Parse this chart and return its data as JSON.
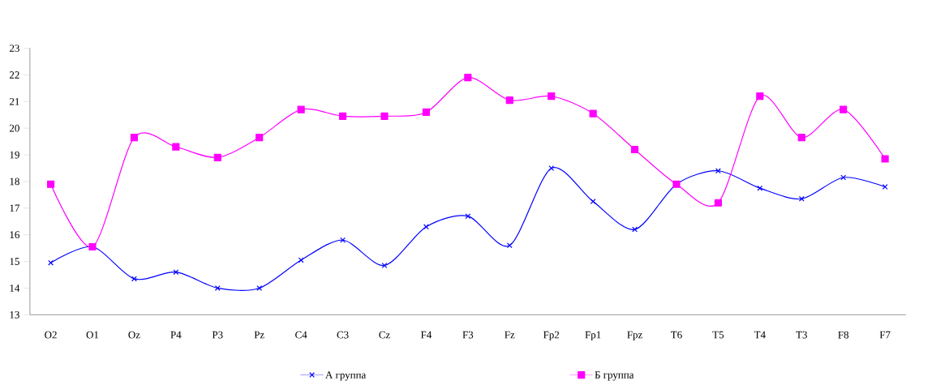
{
  "chart_data": {
    "type": "line",
    "categories": [
      "O2",
      "O1",
      "Oz",
      "P4",
      "P3",
      "Pz",
      "C4",
      "C3",
      "Cz",
      "F4",
      "F3",
      "Fz",
      "Fp2",
      "Fp1",
      "Fpz",
      "T6",
      "T5",
      "T4",
      "T3",
      "F8",
      "F7"
    ],
    "series": [
      {
        "name": "А группа",
        "color": "#0000ff",
        "marker": "cross",
        "values": [
          14.95,
          15.55,
          14.35,
          14.6,
          14.0,
          14.0,
          15.05,
          15.8,
          14.85,
          16.3,
          16.7,
          15.6,
          18.5,
          17.25,
          16.2,
          17.9,
          18.4,
          17.75,
          17.35,
          18.15,
          17.8
        ]
      },
      {
        "name": "Б группа",
        "color": "#ff00ff",
        "marker": "square",
        "values": [
          17.9,
          15.55,
          19.65,
          19.3,
          18.9,
          19.65,
          20.7,
          20.45,
          20.45,
          20.6,
          21.9,
          21.05,
          21.2,
          20.55,
          19.2,
          17.9,
          17.2,
          21.2,
          19.65,
          20.7,
          18.85
        ]
      }
    ],
    "ylim": [
      13,
      23
    ],
    "yticks": [
      13,
      14,
      15,
      16,
      17,
      18,
      19,
      20,
      21,
      22,
      23
    ],
    "grid": false,
    "legend": "bottom",
    "line_style": "solid"
  }
}
